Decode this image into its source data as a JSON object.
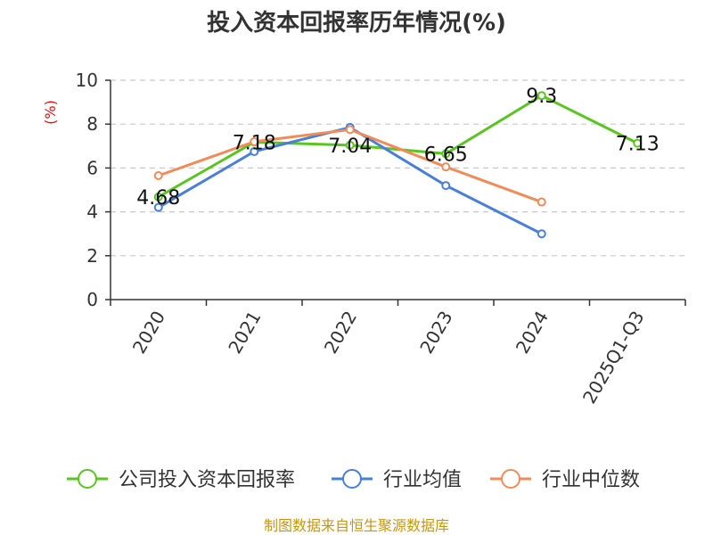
{
  "colors": {
    "company": "#5ac421",
    "industry_avg": "#4a7fd8",
    "industry_median": "#f08c5a"
  },
  "chart_data": {
    "type": "line",
    "title": "投入资本回报率历年情况(%)",
    "ylabel": "(%)",
    "xlabel": "",
    "categories": [
      "2020",
      "2021",
      "2022",
      "2023",
      "2024",
      "2025Q1-Q3"
    ],
    "ylim": [
      0,
      10
    ],
    "yticks": [
      0,
      2,
      4,
      6,
      8,
      10
    ],
    "grid": true,
    "legend_position": "bottom",
    "series": [
      {
        "name": "公司投入资本回报率",
        "color": "#5ac421",
        "values": [
          4.68,
          7.18,
          7.04,
          6.65,
          9.3,
          7.13
        ],
        "data_labels": [
          "4.68",
          "7.18",
          "7.04",
          "6.65",
          "9.3",
          "7.13"
        ]
      },
      {
        "name": "行业均值",
        "color": "#4a7fd8",
        "values": [
          4.2,
          6.75,
          7.85,
          5.2,
          3.0,
          null
        ]
      },
      {
        "name": "行业中位数",
        "color": "#f08c5a",
        "values": [
          5.65,
          7.2,
          7.75,
          6.05,
          4.45,
          null
        ]
      }
    ]
  },
  "footer": {
    "source": "制图数据来自恒生聚源数据库"
  }
}
